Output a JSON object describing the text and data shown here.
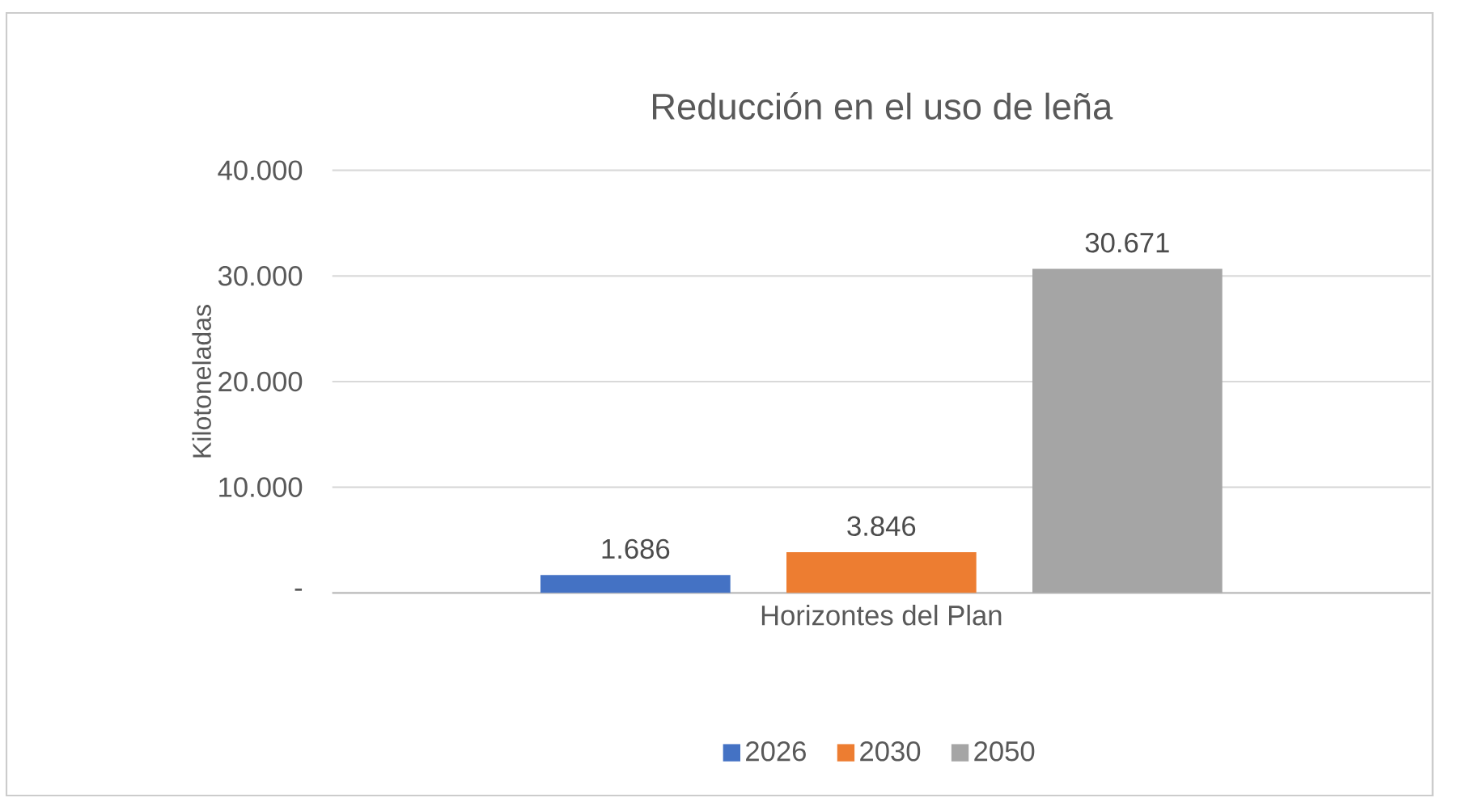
{
  "chart_data": {
    "type": "bar",
    "title": "Reducción en el uso de leña",
    "ylabel": "Kilotoneladas",
    "categories": [
      "Horizontes del Plan"
    ],
    "series": [
      {
        "name": "2026",
        "color": "#4472c4",
        "values": [
          1686
        ],
        "value_labels": [
          "1.686"
        ]
      },
      {
        "name": "2030",
        "color": "#ed7d31",
        "values": [
          3846
        ],
        "value_labels": [
          "3.846"
        ]
      },
      {
        "name": "2050",
        "color": "#a5a5a5",
        "values": [
          30671
        ],
        "value_labels": [
          "30.671"
        ]
      }
    ],
    "ylim": [
      0,
      40000
    ],
    "yticks": [
      {
        "value": 0,
        "label": "-"
      },
      {
        "value": 10000,
        "label": "10.000"
      },
      {
        "value": 20000,
        "label": "20.000"
      },
      {
        "value": 30000,
        "label": "30.000"
      },
      {
        "value": 40000,
        "label": "40.000"
      }
    ],
    "grid": "y",
    "legend": "bottom"
  }
}
